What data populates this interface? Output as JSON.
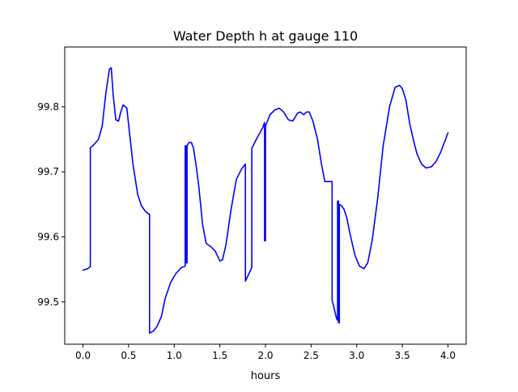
{
  "chart_data": {
    "type": "line",
    "title": "Water Depth h at gauge 110",
    "xlabel": "hours",
    "ylabel": "",
    "xlim": [
      -0.2,
      4.2
    ],
    "ylim": [
      99.435,
      99.892
    ],
    "x_ticks": [
      0.0,
      0.5,
      1.0,
      1.5,
      2.0,
      2.5,
      3.0,
      3.5,
      4.0
    ],
    "x_tick_labels": [
      "0.0",
      "0.5",
      "1.0",
      "1.5",
      "2.0",
      "2.5",
      "3.0",
      "3.5",
      "4.0"
    ],
    "y_ticks": [
      99.5,
      99.6,
      99.7,
      99.8
    ],
    "y_tick_labels": [
      "99.5",
      "99.6",
      "99.7",
      "99.8"
    ],
    "grid": false,
    "legend": "none",
    "series": [
      {
        "color": "#0000ff",
        "x": [
          0.0,
          0.05,
          0.08,
          0.08,
          0.12,
          0.17,
          0.21,
          0.25,
          0.29,
          0.31,
          0.33,
          0.36,
          0.39,
          0.41,
          0.44,
          0.48,
          0.51,
          0.55,
          0.6,
          0.64,
          0.68,
          0.72,
          0.73,
          0.73,
          0.77,
          0.81,
          0.86,
          0.9,
          0.96,
          1.02,
          1.08,
          1.12,
          1.12,
          1.13,
          1.13,
          1.14,
          1.14,
          1.16,
          1.19,
          1.2,
          1.21,
          1.21,
          1.24,
          1.27,
          1.31,
          1.35,
          1.4,
          1.45,
          1.5,
          1.53,
          1.57,
          1.62,
          1.68,
          1.74,
          1.78,
          1.78,
          1.84,
          1.85,
          1.85,
          1.9,
          1.97,
          1.99,
          1.99,
          2.0,
          2.0,
          2.05,
          2.1,
          2.15,
          2.2,
          2.25,
          2.3,
          2.35,
          2.38,
          2.42,
          2.45,
          2.48,
          2.52,
          2.57,
          2.61,
          2.65,
          2.7,
          2.73,
          2.73,
          2.75,
          2.78,
          2.79,
          2.79,
          2.8,
          2.8,
          2.81,
          2.81,
          2.83,
          2.86,
          2.89,
          2.93,
          2.98,
          3.03,
          3.08,
          3.12,
          3.17,
          3.23,
          3.29,
          3.36,
          3.42,
          3.47,
          3.5,
          3.54,
          3.58,
          3.62,
          3.66,
          3.71,
          3.76,
          3.82,
          3.87,
          3.92,
          3.96,
          4.0
        ],
        "y": [
          99.549,
          99.551,
          99.554,
          99.737,
          99.742,
          99.75,
          99.77,
          99.82,
          99.858,
          99.86,
          99.82,
          99.78,
          99.778,
          99.79,
          99.803,
          99.798,
          99.76,
          99.71,
          99.665,
          99.648,
          99.64,
          99.635,
          99.635,
          99.452,
          99.455,
          99.462,
          99.478,
          99.505,
          99.53,
          99.544,
          99.553,
          99.555,
          99.74,
          99.74,
          99.56,
          99.56,
          99.74,
          99.745,
          99.745,
          99.74,
          99.738,
          99.738,
          99.71,
          99.677,
          99.62,
          99.59,
          99.585,
          99.578,
          99.563,
          99.565,
          99.59,
          99.64,
          99.688,
          99.705,
          99.712,
          99.532,
          99.55,
          99.553,
          99.736,
          99.75,
          99.768,
          99.776,
          99.594,
          99.594,
          99.77,
          99.788,
          99.795,
          99.798,
          99.792,
          99.78,
          99.778,
          99.79,
          99.792,
          99.788,
          99.792,
          99.792,
          99.778,
          99.75,
          99.715,
          99.685,
          99.685,
          99.685,
          99.503,
          99.492,
          99.474,
          99.472,
          99.655,
          99.655,
          99.468,
          99.468,
          99.65,
          99.648,
          99.643,
          99.63,
          99.603,
          99.572,
          99.555,
          99.551,
          99.56,
          99.595,
          99.66,
          99.74,
          99.8,
          99.83,
          99.833,
          99.828,
          99.81,
          99.775,
          99.75,
          99.728,
          99.712,
          99.706,
          99.708,
          99.716,
          99.73,
          99.745,
          99.76
        ]
      }
    ]
  }
}
